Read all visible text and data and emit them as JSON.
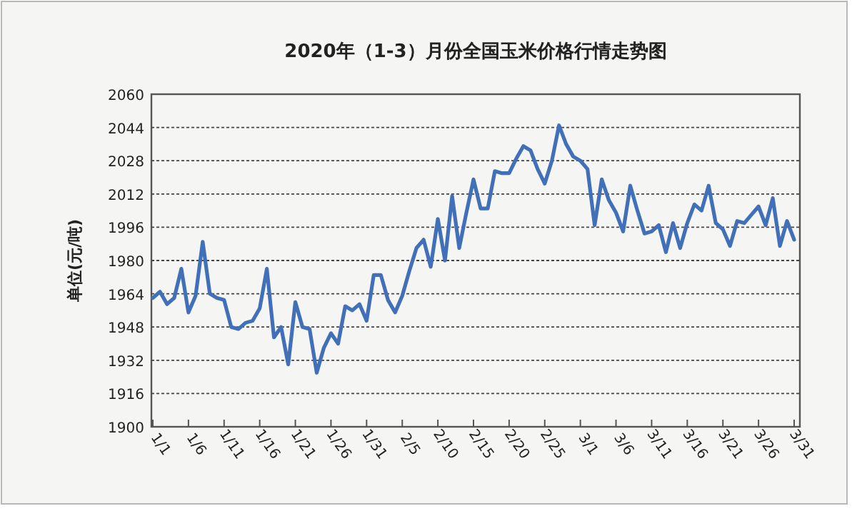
{
  "chart_data": {
    "type": "line",
    "title": "2020年（1-3）月份全国玉米价格行情走势图",
    "ylabel": "单位(元/吨)",
    "categories": [
      "1/1",
      null,
      null,
      null,
      null,
      "1/6",
      null,
      null,
      null,
      null,
      "1/11",
      null,
      null,
      null,
      null,
      "1/16",
      null,
      null,
      null,
      null,
      "1/21",
      null,
      null,
      null,
      null,
      "1/26",
      null,
      null,
      null,
      null,
      "1/31",
      null,
      null,
      null,
      null,
      "2/5",
      null,
      null,
      null,
      null,
      "2/10",
      null,
      null,
      null,
      null,
      "2/15",
      null,
      null,
      null,
      null,
      "2/20",
      null,
      null,
      null,
      null,
      "2/25",
      null,
      null,
      null,
      null,
      "3/1",
      null,
      null,
      null,
      null,
      "3/6",
      null,
      null,
      null,
      null,
      "3/11",
      null,
      null,
      null,
      null,
      "3/16",
      null,
      null,
      null,
      null,
      "3/21",
      null,
      null,
      null,
      null,
      "3/26",
      null,
      null,
      null,
      null,
      "3/31"
    ],
    "series": [
      {
        "color": "#4170b8",
        "values": [
          1962,
          1965,
          1959,
          1962,
          1976,
          1955,
          1963,
          1989,
          1964,
          1962,
          1961,
          1948,
          1947,
          1950,
          1951,
          1957,
          1976,
          1943,
          1948,
          1930,
          1960,
          1948,
          1947,
          1926,
          1938,
          1945,
          1940,
          1958,
          1956,
          1959,
          1951,
          1973,
          1973,
          1961,
          1955,
          1963,
          1975,
          1986,
          1990,
          1977,
          2000,
          1980,
          2011,
          1986,
          2003,
          2019,
          2005,
          2005,
          2023,
          2022,
          2022,
          2029,
          2035,
          2033,
          2024,
          2017,
          2028,
          2045,
          2036,
          2030,
          2028,
          2024,
          1997,
          2019,
          2009,
          2003,
          1994,
          2016,
          2004,
          1993,
          1994,
          1997,
          1984,
          1998,
          1986,
          1998,
          2007,
          2004,
          2016,
          1998,
          1995,
          1987,
          1999,
          1998,
          2002,
          2006,
          1997,
          2010,
          1987,
          1999,
          1990
        ]
      }
    ],
    "ylim": [
      1900,
      2060
    ],
    "yticks": [
      1900,
      1916,
      1932,
      1948,
      1964,
      1980,
      1996,
      2012,
      2028,
      2044,
      2060
    ],
    "grid": "y",
    "line_style": "solid",
    "marker": "none"
  }
}
